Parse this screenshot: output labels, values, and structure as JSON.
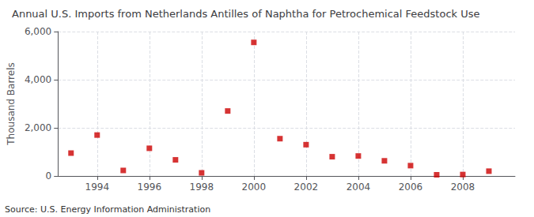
{
  "chart_data": {
    "type": "scatter",
    "title": "Annual U.S. Imports from Netherlands Antilles of Naphtha for Petrochemical Feedstock Use",
    "ylabel": "Thousand Barrels",
    "annotations": [
      "Source: U.S. Energy Information Administration"
    ],
    "x": [
      1993,
      1994,
      1995,
      1996,
      1997,
      1998,
      1999,
      2000,
      2001,
      2002,
      2003,
      2004,
      2005,
      2006,
      2007,
      2008,
      2009
    ],
    "values": [
      950,
      1700,
      230,
      1150,
      670,
      130,
      2700,
      5550,
      1550,
      1300,
      800,
      830,
      630,
      430,
      50,
      60,
      200
    ],
    "color": "#cc0000",
    "marker": "square",
    "xlim": [
      1992.5,
      2010
    ],
    "xticks": [
      1994,
      1996,
      1998,
      2000,
      2002,
      2004,
      2006,
      2008
    ],
    "ylim": [
      0,
      6000
    ],
    "yticks": [
      0,
      {
        "value": 2000,
        "label": "2,000"
      },
      {
        "value": 4000,
        "label": "4,000"
      },
      {
        "value": 6000,
        "label": "6,000"
      }
    ],
    "grid": true
  }
}
